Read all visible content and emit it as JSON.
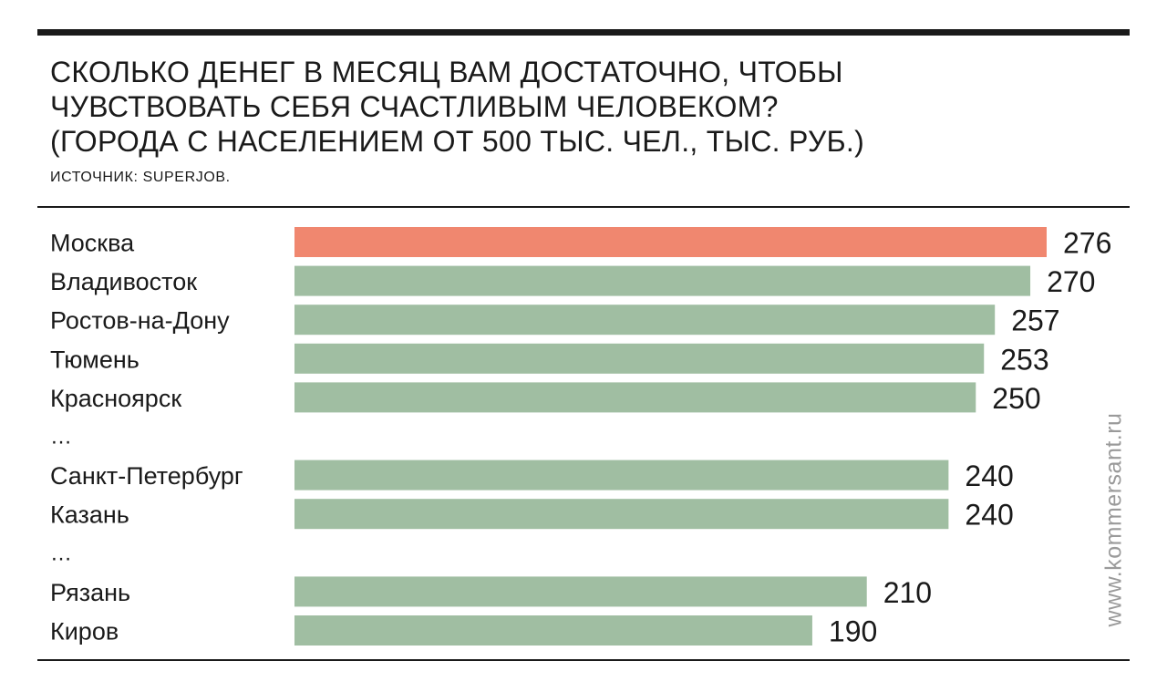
{
  "title_lines": [
    "СКОЛЬКО ДЕНЕГ В МЕСЯЦ ВАМ ДОСТАТОЧНО, ЧТОБЫ",
    "ЧУВСТВОВАТЬ СЕБЯ СЧАСТЛИВЫМ ЧЕЛОВЕКОМ?",
    "(ГОРОДА С НАСЕЛЕНИЕМ ОТ 500 ТЫС. ЧЕЛ., ТЫС. РУБ.)"
  ],
  "source": "ИСТОЧНИК: SUPERJOB.",
  "watermark": "www.kommersant.ru",
  "colors": {
    "highlight": "#f0876f",
    "bar": "#a0bea2",
    "text": "#1a1a1a"
  },
  "chart_data": {
    "type": "bar",
    "orientation": "horizontal",
    "title": "СКОЛЬКО ДЕНЕГ В МЕСЯЦ ВАМ ДОСТАТОЧНО, ЧТОБЫ ЧУВСТВОВАТЬ СЕБЯ СЧАСТЛИВЫМ ЧЕЛОВЕКОМ? (ГОРОДА С НАСЕЛЕНИЕМ ОТ 500 ТЫС. ЧЕЛ., ТЫС. РУБ.)",
    "xlabel": "",
    "ylabel": "",
    "xlim": [
      0,
      276
    ],
    "grid": false,
    "legend": "none",
    "ellipsis_text": "…",
    "rows": [
      {
        "category": "Москва",
        "value": 276,
        "highlight": true
      },
      {
        "category": "Владивосток",
        "value": 270
      },
      {
        "category": "Ростов-на-Дону",
        "value": 257
      },
      {
        "category": "Тюмень",
        "value": 253
      },
      {
        "category": "Красноярск",
        "value": 250
      },
      {
        "ellipsis": true
      },
      {
        "category": "Санкт-Петербург",
        "value": 240
      },
      {
        "category": "Казань",
        "value": 240
      },
      {
        "ellipsis": true
      },
      {
        "category": "Рязань",
        "value": 210
      },
      {
        "category": "Киров",
        "value": 190
      }
    ]
  }
}
